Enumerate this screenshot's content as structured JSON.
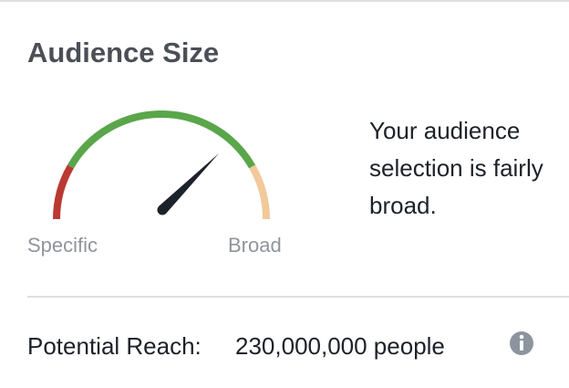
{
  "header": {
    "title": "Audience Size"
  },
  "gauge": {
    "min_label": "Specific",
    "max_label": "Broad"
  },
  "description_lines": [
    "Your audience",
    "selection is fairly",
    "broad."
  ],
  "reach": {
    "label": "Potential Reach:",
    "value": "230,000,000 people"
  }
}
